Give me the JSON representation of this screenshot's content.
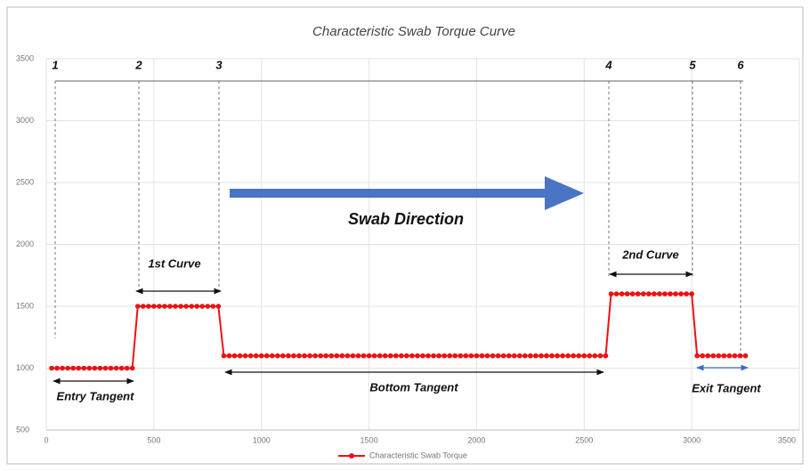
{
  "chart_data": {
    "type": "line",
    "title": "Characteristic Swab Torque Curve",
    "x": [
      25,
      50,
      75,
      100,
      125,
      150,
      175,
      200,
      225,
      250,
      275,
      300,
      325,
      350,
      375,
      400,
      425,
      450,
      475,
      500,
      525,
      550,
      575,
      600,
      625,
      650,
      675,
      700,
      725,
      750,
      775,
      800,
      825,
      850,
      875,
      900,
      925,
      950,
      975,
      1000,
      1025,
      1050,
      1075,
      1100,
      1125,
      1150,
      1175,
      1200,
      1225,
      1250,
      1275,
      1300,
      1325,
      1350,
      1375,
      1400,
      1425,
      1450,
      1475,
      1500,
      1525,
      1550,
      1575,
      1600,
      1625,
      1650,
      1675,
      1700,
      1725,
      1750,
      1775,
      1800,
      1825,
      1850,
      1875,
      1900,
      1925,
      1950,
      1975,
      2000,
      2025,
      2050,
      2075,
      2100,
      2125,
      2150,
      2175,
      2200,
      2225,
      2250,
      2275,
      2300,
      2325,
      2350,
      2375,
      2400,
      2425,
      2450,
      2475,
      2500,
      2525,
      2550,
      2575,
      2600,
      2625,
      2650,
      2675,
      2700,
      2725,
      2750,
      2775,
      2800,
      2825,
      2850,
      2875,
      2900,
      2925,
      2950,
      2975,
      3000,
      3025,
      3050,
      3075,
      3100,
      3125,
      3150,
      3175,
      3200,
      3225,
      3250
    ],
    "series": [
      {
        "name": "Characteristic Swab Torque",
        "color": "#ee1111",
        "values": [
          1000,
          1000,
          1000,
          1000,
          1000,
          1000,
          1000,
          1000,
          1000,
          1000,
          1000,
          1000,
          1000,
          1000,
          1000,
          1000,
          1500,
          1500,
          1500,
          1500,
          1500,
          1500,
          1500,
          1500,
          1500,
          1500,
          1500,
          1500,
          1500,
          1500,
          1500,
          1500,
          1100,
          1100,
          1100,
          1100,
          1100,
          1100,
          1100,
          1100,
          1100,
          1100,
          1100,
          1100,
          1100,
          1100,
          1100,
          1100,
          1100,
          1100,
          1100,
          1100,
          1100,
          1100,
          1100,
          1100,
          1100,
          1100,
          1100,
          1100,
          1100,
          1100,
          1100,
          1100,
          1100,
          1100,
          1100,
          1100,
          1100,
          1100,
          1100,
          1100,
          1100,
          1100,
          1100,
          1100,
          1100,
          1100,
          1100,
          1100,
          1100,
          1100,
          1100,
          1100,
          1100,
          1100,
          1100,
          1100,
          1100,
          1100,
          1100,
          1100,
          1100,
          1100,
          1100,
          1100,
          1100,
          1100,
          1100,
          1100,
          1100,
          1100,
          1100,
          1100,
          1600,
          1600,
          1600,
          1600,
          1600,
          1600,
          1600,
          1600,
          1600,
          1600,
          1600,
          1600,
          1600,
          1600,
          1600,
          1600,
          1100,
          1100,
          1100,
          1100,
          1100,
          1100,
          1100,
          1100,
          1100,
          1100
        ]
      }
    ],
    "xlim": [
      0,
      3500
    ],
    "xticks": [
      0,
      500,
      1000,
      1500,
      2000,
      2500,
      3000,
      3500
    ],
    "ylim": [
      500,
      3500
    ],
    "yticks": [
      500,
      1000,
      1500,
      2000,
      2500,
      3000,
      3500
    ],
    "grid": true,
    "legend": "bottom",
    "points": [
      "1",
      "2",
      "3",
      "4",
      "5",
      "6"
    ],
    "annotations": {
      "first_curve": "1st Curve",
      "second_curve": "2nd Curve",
      "entry": "Entry Tangent",
      "bottom": "Bottom Tangent",
      "exit": "Exit Tangent",
      "direction": "Swab Direction"
    }
  }
}
